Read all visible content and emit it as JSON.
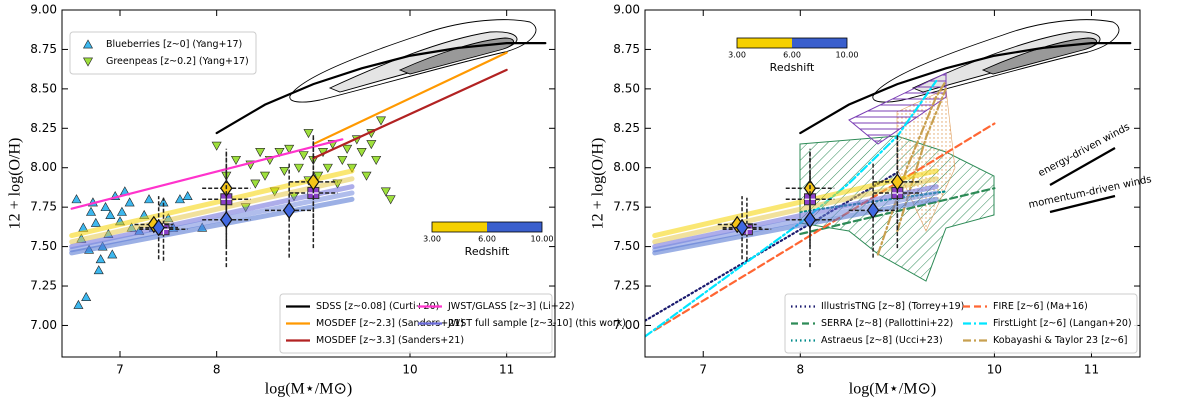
{
  "chart_data": [
    {
      "type": "line",
      "xlabel": "log(M⋆/M⊙)",
      "ylabel": "12 + log(O/H)",
      "xlim": [
        6.4,
        11.5
      ],
      "ylim": [
        6.8,
        9.0
      ],
      "xticks": [
        7,
        8,
        10,
        11
      ],
      "yticks": [
        {
          "value": 7,
          "label": "7.00"
        },
        {
          "value": 7.25,
          "label": "7.25"
        },
        {
          "value": 7.5,
          "label": "7.50"
        },
        {
          "value": 7.75,
          "label": "7.75"
        },
        {
          "value": 8,
          "label": "8.00"
        },
        {
          "value": 8.25,
          "label": "8.25"
        },
        {
          "value": 8.5,
          "label": "8.50"
        },
        {
          "value": 8.75,
          "label": "8.75"
        },
        {
          "value": 9,
          "label": "9.00"
        }
      ],
      "colorbar": {
        "label": "Redshift",
        "colors": [
          "#f5d000",
          "#3a5fcd"
        ],
        "ticks": [
          {
            "value": 3,
            "label": "3.00"
          },
          {
            "value": 6,
            "label": "6.00"
          },
          {
            "value": 10,
            "label": "10.00"
          }
        ]
      },
      "series": [
        {
          "name": "Blueberries [z~0] (Yang+17)",
          "kind": "scatter",
          "marker": "^",
          "color": "#3db8ef",
          "legend": "upper left",
          "x": [
            6.55,
            6.57,
            6.6,
            6.62,
            6.65,
            6.68,
            6.72,
            6.75,
            6.78,
            6.8,
            6.82,
            6.85,
            6.88,
            6.9,
            6.95,
            7.0,
            7.02,
            7.05,
            7.1,
            7.12,
            7.2,
            7.25,
            7.3,
            7.35,
            7.45,
            7.5,
            7.55,
            7.62,
            7.7,
            7.85,
            6.7,
            6.92
          ],
          "values": [
            7.8,
            7.13,
            7.55,
            7.62,
            7.18,
            7.48,
            7.78,
            7.65,
            7.35,
            7.42,
            7.5,
            7.75,
            7.58,
            7.7,
            7.82,
            7.66,
            7.72,
            7.85,
            7.78,
            7.62,
            7.6,
            7.7,
            7.8,
            7.62,
            7.78,
            7.68,
            7.62,
            7.8,
            7.82,
            7.62,
            7.72,
            7.45
          ]
        },
        {
          "name": "Greenpeas [z~0.2] (Yang+17)",
          "kind": "scatter",
          "marker": "v",
          "color": "#9ee03c",
          "legend": "upper left",
          "x": [
            8.0,
            8.1,
            8.2,
            8.3,
            8.35,
            8.4,
            8.45,
            8.5,
            8.55,
            8.6,
            8.65,
            8.7,
            8.75,
            8.8,
            8.85,
            8.9,
            8.95,
            9.0,
            9.05,
            9.1,
            9.15,
            9.2,
            9.25,
            9.3,
            9.35,
            9.4,
            9.45,
            9.5,
            9.55,
            9.6,
            9.65,
            9.7,
            9.75,
            9.8,
            9.6,
            8.95
          ],
          "values": [
            8.14,
            7.95,
            8.05,
            7.75,
            8.02,
            7.9,
            8.1,
            7.95,
            8.05,
            7.85,
            8.1,
            7.98,
            8.12,
            7.82,
            8.0,
            8.08,
            7.92,
            8.05,
            7.95,
            8.1,
            8.0,
            8.15,
            7.9,
            8.05,
            8.12,
            8.0,
            8.18,
            8.1,
            7.95,
            8.15,
            8.05,
            8.3,
            7.85,
            7.8,
            8.22,
            8.22
          ]
        },
        {
          "name": "SDSS [z~0.08] (Curti+20)",
          "kind": "line",
          "color": "#000000",
          "legend": "lower right",
          "x": [
            8.0,
            8.5,
            9.0,
            9.5,
            10.0,
            10.5,
            11.0,
            11.4
          ],
          "values": [
            8.22,
            8.4,
            8.53,
            8.63,
            8.71,
            8.76,
            8.79,
            8.79
          ]
        },
        {
          "name": "MOSDEF [z~2.3] (Sanders+21)",
          "kind": "line",
          "color": "#ff9900",
          "legend": "lower right",
          "x": [
            9.0,
            11.0
          ],
          "values": [
            8.15,
            8.73
          ]
        },
        {
          "name": "MOSDEF [z~3.3] (Sanders+21)",
          "kind": "line",
          "color": "#b22222",
          "legend": "lower right",
          "x": [
            9.0,
            11.0
          ],
          "values": [
            8.06,
            8.62
          ]
        },
        {
          "name": "JWST/GLASS [z~3] (Li+22)",
          "kind": "line",
          "color": "#ff33cc",
          "legend": "lower right",
          "x": [
            6.5,
            9.3
          ],
          "values": [
            7.74,
            8.18
          ]
        },
        {
          "kind": "band",
          "color": "#f5d300",
          "x": [
            6.5,
            9.4
          ],
          "values": [
            7.57,
            7.98
          ]
        },
        {
          "kind": "band",
          "color": "#e6c94a",
          "x": [
            6.5,
            9.4
          ],
          "values": [
            7.53,
            7.93
          ]
        },
        {
          "name": "JWST full sample [z~3-10] (this work)",
          "kind": "band",
          "color": "#6a6ad8",
          "legend": "lower right",
          "x": [
            6.5,
            9.4
          ],
          "values": [
            7.5,
            7.88
          ]
        },
        {
          "kind": "band",
          "color": "#6f86dc",
          "x": [
            6.5,
            9.4
          ],
          "values": [
            7.48,
            7.84
          ]
        },
        {
          "kind": "band",
          "color": "#4a6fd0",
          "x": [
            6.5,
            9.4
          ],
          "values": [
            7.46,
            7.8
          ]
        },
        {
          "kind": "errorbar",
          "marker": "s",
          "color": "#8a3fc9",
          "x": [
            7.45,
            8.1,
            9.0
          ],
          "values": [
            7.61,
            7.8,
            7.84
          ],
          "yerr": [
            0.2,
            0.3,
            0.35
          ],
          "xerr": [
            0.25,
            0.25,
            0.25
          ]
        },
        {
          "kind": "errorbar",
          "marker": "D",
          "color": "#f5c518",
          "x": [
            7.35,
            8.1,
            9.0
          ],
          "values": [
            7.64,
            7.87,
            7.91
          ],
          "yerr": [
            0.05,
            0.25,
            0.3
          ],
          "xerr": [
            0.2,
            0.25,
            0.25
          ]
        },
        {
          "kind": "errorbar",
          "marker": "D",
          "color": "#4169e1",
          "x": [
            7.4,
            8.1,
            8.75
          ],
          "values": [
            7.62,
            7.67,
            7.73
          ],
          "yerr": [
            0.2,
            0.3,
            0.3
          ],
          "xerr": [
            0.2,
            0.25,
            0.25
          ]
        }
      ]
    },
    {
      "type": "line",
      "xlabel": "log(M⋆/M⊙)",
      "ylabel": "12 + log(O/H)",
      "xlim": [
        6.4,
        11.5
      ],
      "ylim": [
        6.8,
        9.0
      ],
      "xticks": [
        7,
        8,
        10,
        11
      ],
      "yticks": [
        {
          "value": 7,
          "label": "7.00"
        },
        {
          "value": 7.25,
          "label": "7.25"
        },
        {
          "value": 7.5,
          "label": "7.50"
        },
        {
          "value": 7.75,
          "label": "7.75"
        },
        {
          "value": 8,
          "label": "8.00"
        },
        {
          "value": 8.25,
          "label": "8.25"
        },
        {
          "value": 8.5,
          "label": "8.50"
        },
        {
          "value": 8.75,
          "label": "8.75"
        },
        {
          "value": 9,
          "label": "9.00"
        }
      ],
      "colorbar": {
        "label": "Redshift",
        "colors": [
          "#f5d000",
          "#3a5fcd"
        ],
        "ticks": [
          {
            "value": 3,
            "label": "3.00"
          },
          {
            "value": 6,
            "label": "6.00"
          },
          {
            "value": 10,
            "label": "10.00"
          }
        ]
      },
      "annotations": [
        "energy-driven winds",
        "momentum-driven winds"
      ],
      "series": [
        {
          "kind": "line",
          "color": "#000000",
          "x": [
            8.0,
            8.5,
            9.0,
            9.5,
            10.0,
            10.5,
            11.0,
            11.4
          ],
          "values": [
            8.22,
            8.4,
            8.53,
            8.63,
            8.71,
            8.76,
            8.79,
            8.79
          ]
        },
        {
          "name": "IllustrisTNG [z~8] (Torrey+19)",
          "kind": "line",
          "dash": "dotted",
          "color": "#1a1a6e",
          "legend": "lower right",
          "x": [
            6.4,
            9.0
          ],
          "values": [
            7.03,
            7.97
          ]
        },
        {
          "name": "SERRA [z~8] (Pallottini+22)",
          "kind": "line",
          "dash": "dashed",
          "color": "#2e8b57",
          "legend": "lower right",
          "x": [
            8.0,
            10.0
          ],
          "values": [
            7.58,
            7.87
          ]
        },
        {
          "name": "Astraeus [z~8] (Ucci+23)",
          "kind": "line",
          "dash": "dotted",
          "color": "#008b8b",
          "legend": "lower right",
          "x": [
            8.0,
            9.5
          ],
          "values": [
            7.72,
            7.85
          ]
        },
        {
          "name": "FIRE [z~6] (Ma+16)",
          "kind": "line",
          "dash": "dashed",
          "color": "#ff6633",
          "legend": "lower right",
          "x": [
            6.5,
            10.0
          ],
          "values": [
            6.97,
            8.28
          ]
        },
        {
          "name": "FirstLight [z~6] (Langan+20)",
          "kind": "line",
          "dash": "dashdot",
          "color": "#00e5ff",
          "legend": "lower right",
          "x": [
            6.4,
            7.0,
            8.0,
            8.5,
            9.0,
            9.4
          ],
          "values": [
            6.93,
            7.2,
            7.65,
            7.9,
            8.2,
            8.55
          ]
        },
        {
          "name": "Kobayashi & Taylor 23 [z~6]",
          "kind": "line",
          "dash": "dashdot",
          "color": "#c8a050",
          "legend": "lower right",
          "x": [
            8.8,
            9.1,
            9.4,
            9.5
          ],
          "values": [
            7.45,
            8.0,
            8.45,
            8.55
          ]
        },
        {
          "kind": "line",
          "dash": "dashdot",
          "color": "#c8a050",
          "x": [
            9.0,
            9.3,
            9.5
          ],
          "values": [
            7.6,
            8.2,
            8.5
          ]
        },
        {
          "kind": "band",
          "color": "#f5d300",
          "x": [
            6.5,
            9.4
          ],
          "values": [
            7.57,
            7.98
          ]
        },
        {
          "kind": "band",
          "color": "#e6c94a",
          "x": [
            6.5,
            9.4
          ],
          "values": [
            7.53,
            7.93
          ]
        },
        {
          "kind": "band",
          "color": "#6a6ad8",
          "x": [
            6.5,
            9.4
          ],
          "values": [
            7.5,
            7.88
          ]
        },
        {
          "kind": "band",
          "color": "#6f86dc",
          "x": [
            6.5,
            9.4
          ],
          "values": [
            7.48,
            7.84
          ]
        },
        {
          "kind": "band",
          "color": "#4a6fd0",
          "x": [
            6.5,
            9.4
          ],
          "values": [
            7.46,
            7.8
          ]
        },
        {
          "kind": "errorbar",
          "marker": "s",
          "color": "#8a3fc9",
          "x": [
            7.45,
            8.1,
            9.0
          ],
          "values": [
            7.61,
            7.8,
            7.84
          ],
          "yerr": [
            0.2,
            0.3,
            0.35
          ],
          "xerr": [
            0.25,
            0.25,
            0.25
          ]
        },
        {
          "kind": "errorbar",
          "marker": "D",
          "color": "#f5c518",
          "x": [
            7.35,
            8.1,
            9.0
          ],
          "values": [
            7.64,
            7.87,
            7.91
          ],
          "yerr": [
            0.05,
            0.25,
            0.3
          ],
          "xerr": [
            0.2,
            0.25,
            0.25
          ]
        },
        {
          "kind": "errorbar",
          "marker": "D",
          "color": "#4169e1",
          "x": [
            7.4,
            8.1,
            8.75
          ],
          "values": [
            7.62,
            7.67,
            7.73
          ],
          "yerr": [
            0.2,
            0.3,
            0.3
          ],
          "xerr": [
            0.2,
            0.25,
            0.25
          ]
        }
      ]
    }
  ]
}
